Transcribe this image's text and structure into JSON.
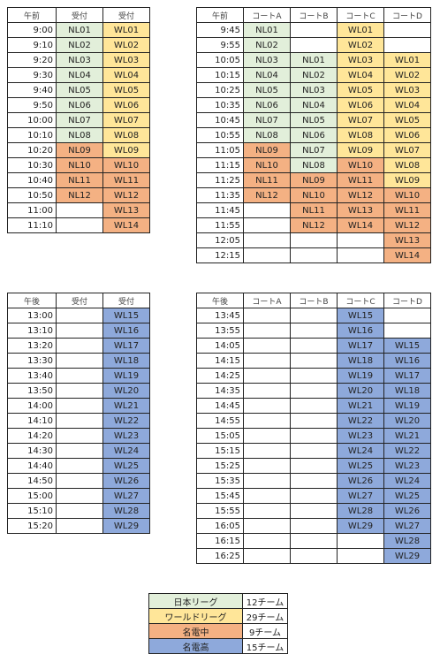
{
  "tables": [
    {
      "header": [
        "午前",
        "受付",
        "受付"
      ],
      "rows": [
        [
          "9:00",
          "NL01",
          "WL01"
        ],
        [
          "9:10",
          "NL02",
          "WL02"
        ],
        [
          "9:20",
          "NL03",
          "WL03"
        ],
        [
          "9:30",
          "NL04",
          "WL04"
        ],
        [
          "9:40",
          "NL05",
          "WL05"
        ],
        [
          "9:50",
          "NL06",
          "WL06"
        ],
        [
          "10:00",
          "NL07",
          "WL07"
        ],
        [
          "10:10",
          "NL08",
          "WL08"
        ],
        [
          "10:20",
          "NL09",
          "WL09"
        ],
        [
          "10:30",
          "NL10",
          "WL10"
        ],
        [
          "10:40",
          "NL11",
          "WL11"
        ],
        [
          "10:50",
          "NL12",
          "WL12"
        ],
        [
          "11:00",
          null,
          "WL13"
        ],
        [
          "11:10",
          null,
          "WL14"
        ]
      ],
      "fills": [
        [
          null,
          "#e2efda",
          "#ffe699"
        ],
        [
          null,
          "#e2efda",
          "#ffe699"
        ],
        [
          null,
          "#e2efda",
          "#ffe699"
        ],
        [
          null,
          "#e2efda",
          "#ffe699"
        ],
        [
          null,
          "#e2efda",
          "#ffe699"
        ],
        [
          null,
          "#e2efda",
          "#ffe699"
        ],
        [
          null,
          "#e2efda",
          "#ffe699"
        ],
        [
          null,
          "#e2efda",
          "#ffe699"
        ],
        [
          null,
          "#f4b183",
          "#ffe699"
        ],
        [
          null,
          "#f4b183",
          "#f4b183"
        ],
        [
          null,
          "#f4b183",
          "#f4b183"
        ],
        [
          null,
          "#f4b183",
          "#f4b183"
        ],
        [
          null,
          null,
          "#f4b183"
        ],
        [
          null,
          null,
          "#f4b183"
        ]
      ]
    },
    {
      "header": [
        "午前",
        "コートA",
        "コートB",
        "コートC",
        "コートD"
      ],
      "rows": [
        [
          "9:45",
          "NL01",
          null,
          "WL01",
          null
        ],
        [
          "9:55",
          "NL02",
          null,
          "WL02",
          null
        ],
        [
          "10:05",
          "NL03",
          "NL01",
          "WL03",
          "WL01"
        ],
        [
          "10:15",
          "NL04",
          "NL02",
          "WL04",
          "WL02"
        ],
        [
          "10:25",
          "NL05",
          "NL03",
          "WL05",
          "WL03"
        ],
        [
          "10:35",
          "NL06",
          "NL04",
          "WL06",
          "WL04"
        ],
        [
          "10:45",
          "NL07",
          "NL05",
          "WL07",
          "WL05"
        ],
        [
          "10:55",
          "NL08",
          "NL06",
          "WL08",
          "WL06"
        ],
        [
          "11:05",
          "NL09",
          "NL07",
          "WL09",
          "WL07"
        ],
        [
          "11:15",
          "NL10",
          "NL08",
          "WL10",
          "WL08"
        ],
        [
          "11:25",
          "NL11",
          "NL09",
          "WL11",
          "WL09"
        ],
        [
          "11:35",
          "NL12",
          "NL10",
          "WL12",
          "WL10"
        ],
        [
          "11:45",
          null,
          "NL11",
          "WL13",
          "WL11"
        ],
        [
          "11:55",
          null,
          "NL12",
          "WL14",
          "WL12"
        ],
        [
          "12:05",
          null,
          null,
          null,
          "WL13"
        ],
        [
          "12:15",
          null,
          null,
          null,
          "WL14"
        ]
      ],
      "fills": [
        [
          null,
          "#e2efda",
          null,
          "#ffe699",
          null
        ],
        [
          null,
          "#e2efda",
          null,
          "#ffe699",
          null
        ],
        [
          null,
          "#e2efda",
          "#e2efda",
          "#ffe699",
          "#ffe699"
        ],
        [
          null,
          "#e2efda",
          "#e2efda",
          "#ffe699",
          "#ffe699"
        ],
        [
          null,
          "#e2efda",
          "#e2efda",
          "#ffe699",
          "#ffe699"
        ],
        [
          null,
          "#e2efda",
          "#e2efda",
          "#ffe699",
          "#ffe699"
        ],
        [
          null,
          "#e2efda",
          "#e2efda",
          "#ffe699",
          "#ffe699"
        ],
        [
          null,
          "#e2efda",
          "#e2efda",
          "#ffe699",
          "#ffe699"
        ],
        [
          null,
          "#f4b183",
          "#e2efda",
          "#ffe699",
          "#ffe699"
        ],
        [
          null,
          "#f4b183",
          "#e2efda",
          "#f4b183",
          "#ffe699"
        ],
        [
          null,
          "#f4b183",
          "#f4b183",
          "#f4b183",
          "#ffe699"
        ],
        [
          null,
          "#f4b183",
          "#f4b183",
          "#f4b183",
          "#f4b183"
        ],
        [
          null,
          null,
          "#f4b183",
          "#f4b183",
          "#f4b183"
        ],
        [
          null,
          null,
          "#f4b183",
          "#f4b183",
          "#f4b183"
        ],
        [
          null,
          null,
          null,
          null,
          "#f4b183"
        ],
        [
          null,
          null,
          null,
          null,
          "#f4b183"
        ]
      ]
    },
    {
      "header": [
        "午後",
        "受付",
        "受付"
      ],
      "rows": [
        [
          "13:00",
          null,
          "WL15"
        ],
        [
          "13:10",
          null,
          "WL16"
        ],
        [
          "13:20",
          null,
          "WL17"
        ],
        [
          "13:30",
          null,
          "WL18"
        ],
        [
          "13:40",
          null,
          "WL19"
        ],
        [
          "13:50",
          null,
          "WL20"
        ],
        [
          "14:00",
          null,
          "WL21"
        ],
        [
          "14:10",
          null,
          "WL22"
        ],
        [
          "14:20",
          null,
          "WL23"
        ],
        [
          "14:30",
          null,
          "WL24"
        ],
        [
          "14:40",
          null,
          "WL25"
        ],
        [
          "14:50",
          null,
          "WL26"
        ],
        [
          "15:00",
          null,
          "WL27"
        ],
        [
          "15:10",
          null,
          "WL28"
        ],
        [
          "15:20",
          null,
          "WL29"
        ]
      ],
      "fills": [
        [
          null,
          null,
          "#8ea9db"
        ],
        [
          null,
          null,
          "#8ea9db"
        ],
        [
          null,
          null,
          "#8ea9db"
        ],
        [
          null,
          null,
          "#8ea9db"
        ],
        [
          null,
          null,
          "#8ea9db"
        ],
        [
          null,
          null,
          "#8ea9db"
        ],
        [
          null,
          null,
          "#8ea9db"
        ],
        [
          null,
          null,
          "#8ea9db"
        ],
        [
          null,
          null,
          "#8ea9db"
        ],
        [
          null,
          null,
          "#8ea9db"
        ],
        [
          null,
          null,
          "#8ea9db"
        ],
        [
          null,
          null,
          "#8ea9db"
        ],
        [
          null,
          null,
          "#8ea9db"
        ],
        [
          null,
          null,
          "#8ea9db"
        ],
        [
          null,
          null,
          "#8ea9db"
        ]
      ]
    },
    {
      "header": [
        "午後",
        "コートA",
        "コートB",
        "コートC",
        "コートD"
      ],
      "rows": [
        [
          "13:45",
          null,
          null,
          "WL15",
          null
        ],
        [
          "13:55",
          null,
          null,
          "WL16",
          null
        ],
        [
          "14:05",
          null,
          null,
          "WL17",
          "WL15"
        ],
        [
          "14:15",
          null,
          null,
          "WL18",
          "WL16"
        ],
        [
          "14:25",
          null,
          null,
          "WL19",
          "WL17"
        ],
        [
          "14:35",
          null,
          null,
          "WL20",
          "WL18"
        ],
        [
          "14:45",
          null,
          null,
          "WL21",
          "WL19"
        ],
        [
          "14:55",
          null,
          null,
          "WL22",
          "WL20"
        ],
        [
          "15:05",
          null,
          null,
          "WL23",
          "WL21"
        ],
        [
          "15:15",
          null,
          null,
          "WL24",
          "WL22"
        ],
        [
          "15:25",
          null,
          null,
          "WL25",
          "WL23"
        ],
        [
          "15:35",
          null,
          null,
          "WL26",
          "WL24"
        ],
        [
          "15:45",
          null,
          null,
          "WL27",
          "WL25"
        ],
        [
          "15:55",
          null,
          null,
          "WL28",
          "WL26"
        ],
        [
          "16:05",
          null,
          null,
          "WL29",
          "WL27"
        ],
        [
          "16:15",
          null,
          null,
          null,
          "WL28"
        ],
        [
          "16:25",
          null,
          null,
          null,
          "WL29"
        ]
      ],
      "fills": [
        [
          null,
          null,
          null,
          "#8ea9db",
          null
        ],
        [
          null,
          null,
          null,
          "#8ea9db",
          null
        ],
        [
          null,
          null,
          null,
          "#8ea9db",
          "#8ea9db"
        ],
        [
          null,
          null,
          null,
          "#8ea9db",
          "#8ea9db"
        ],
        [
          null,
          null,
          null,
          "#8ea9db",
          "#8ea9db"
        ],
        [
          null,
          null,
          null,
          "#8ea9db",
          "#8ea9db"
        ],
        [
          null,
          null,
          null,
          "#8ea9db",
          "#8ea9db"
        ],
        [
          null,
          null,
          null,
          "#8ea9db",
          "#8ea9db"
        ],
        [
          null,
          null,
          null,
          "#8ea9db",
          "#8ea9db"
        ],
        [
          null,
          null,
          null,
          "#8ea9db",
          "#8ea9db"
        ],
        [
          null,
          null,
          null,
          "#8ea9db",
          "#8ea9db"
        ],
        [
          null,
          null,
          null,
          "#8ea9db",
          "#8ea9db"
        ],
        [
          null,
          null,
          null,
          "#8ea9db",
          "#8ea9db"
        ],
        [
          null,
          null,
          null,
          "#8ea9db",
          "#8ea9db"
        ],
        [
          null,
          null,
          null,
          "#8ea9db",
          "#8ea9db"
        ],
        [
          null,
          null,
          null,
          null,
          "#8ea9db"
        ],
        [
          null,
          null,
          null,
          null,
          "#8ea9db"
        ]
      ]
    }
  ],
  "legend": {
    "rows": [
      [
        "日本リーグ",
        "12チーム"
      ],
      [
        "ワールドリーグ",
        "29チーム"
      ],
      [
        "名電中",
        "9チーム"
      ],
      [
        "名電高",
        "15チーム"
      ]
    ],
    "fills": [
      [
        "#e2efda",
        null
      ],
      [
        "#ffe699",
        null
      ],
      [
        "#f4b183",
        null
      ],
      [
        "#8ea9db",
        null
      ]
    ]
  }
}
